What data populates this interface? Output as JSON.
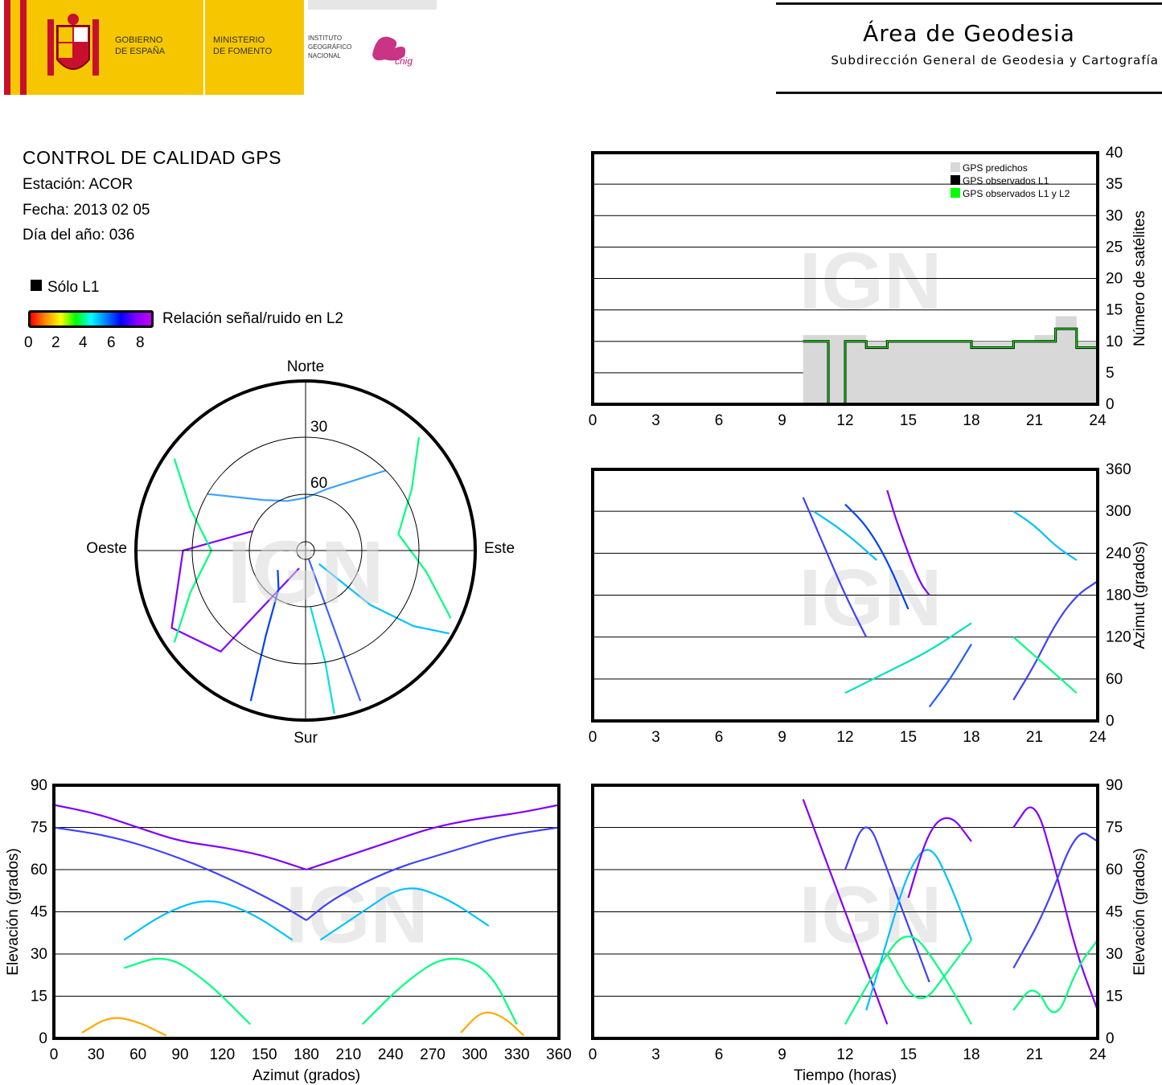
{
  "header": {
    "gov_line1": "GOBIERNO",
    "gov_line2": "DE ESPAÑA",
    "min_line1": "MINISTERIO",
    "min_line2": "DE FOMENTO",
    "ign_line1": "INSTITUTO",
    "ign_line2": "GEOGRÁFICO",
    "ign_line3": "NACIONAL",
    "cnig_logo_text": "cnig",
    "area_title": "Área de Geodesia",
    "area_subtitle": "Subdirección General de Geodesia y Cartografía"
  },
  "info": {
    "title": "CONTROL DE CALIDAD GPS",
    "station": "Estación: ACOR",
    "date": "Fecha: 2013 02 05",
    "doy": "Día del año: 036"
  },
  "legend": {
    "l1_only": "Sólo L1",
    "snr_label": "Relación señal/ruido en L2",
    "snr_ticks": [
      "0",
      "2",
      "4",
      "6",
      "8"
    ],
    "colormap": [
      "#ff0000",
      "#ff8c00",
      "#ffff00",
      "#00ff00",
      "#00ffff",
      "#0080ff",
      "#0000ff",
      "#8000ff",
      "#c000ff"
    ]
  },
  "watermark": "IGN",
  "chart_data": [
    {
      "id": "polar",
      "type": "scatter",
      "title": "",
      "labels": {
        "north": "Norte",
        "south": "Sur",
        "east": "Este",
        "west": "Oeste"
      },
      "rings": [
        "30",
        "60"
      ],
      "tracks": [
        {
          "name": "s1",
          "color": "#8000ff",
          "points": [
            [
              200,
              80
            ],
            [
              220,
              20
            ],
            [
              240,
              8
            ],
            [
              270,
              25
            ],
            [
              290,
              60
            ]
          ]
        },
        {
          "name": "s2",
          "color": "#4060ff",
          "points": [
            [
              160,
              85
            ],
            [
              160,
              50
            ],
            [
              160,
              20
            ],
            [
              160,
              5
            ]
          ]
        },
        {
          "name": "s3",
          "color": "#00c0ff",
          "points": [
            [
              135,
              80
            ],
            [
              130,
              45
            ],
            [
              125,
              20
            ],
            [
              120,
              2
            ]
          ]
        },
        {
          "name": "s4",
          "color": "#00ff80",
          "points": [
            [
              45,
              5
            ],
            [
              60,
              25
            ],
            [
              80,
              40
            ],
            [
              100,
              25
            ],
            [
              115,
              5
            ]
          ]
        },
        {
          "name": "s5",
          "color": "#00ff80",
          "points": [
            [
              235,
              5
            ],
            [
              250,
              25
            ],
            [
              270,
              40
            ],
            [
              290,
              25
            ],
            [
              305,
              5
            ]
          ]
        },
        {
          "name": "s6",
          "color": "#40a0ff",
          "points": [
            [
              300,
              30
            ],
            [
              320,
              55
            ],
            [
              340,
              62
            ],
            [
              0,
              62
            ],
            [
              20,
              55
            ],
            [
              45,
              30
            ]
          ]
        },
        {
          "name": "s7",
          "color": "#0040ff",
          "points": [
            [
              200,
              5
            ],
            [
              205,
              40
            ],
            [
              215,
              65
            ],
            [
              235,
              72
            ]
          ]
        },
        {
          "name": "s8",
          "color": "#00e0e0",
          "points": [
            [
              170,
              2
            ],
            [
              170,
              30
            ],
            [
              175,
              60
            ]
          ]
        }
      ]
    },
    {
      "id": "nsat",
      "type": "area",
      "xlabel": "",
      "ylabel": "Número de satélites",
      "x_ticks": [
        "0",
        "3",
        "6",
        "9",
        "12",
        "15",
        "18",
        "21",
        "24"
      ],
      "y_ticks": [
        "0",
        "5",
        "10",
        "15",
        "20",
        "25",
        "30",
        "35",
        "40"
      ],
      "xlim": [
        0,
        24
      ],
      "ylim": [
        0,
        40
      ],
      "legend": [
        "GPS predichos",
        "GPS observados L1",
        "GPS observados L1 y L2"
      ],
      "legend_colors": [
        "#d8d8d8",
        "#000000",
        "#00ff00"
      ],
      "series": [
        {
          "name": "GPS predichos",
          "x": [
            10,
            11,
            12,
            13,
            14,
            15,
            16,
            17,
            18,
            19,
            20,
            21,
            22,
            23,
            24
          ],
          "y": [
            11,
            11,
            11,
            10,
            10,
            10,
            10,
            10,
            10,
            10,
            10,
            11,
            14,
            10,
            8
          ]
        },
        {
          "name": "GPS observados L1",
          "x": [
            10,
            11,
            11.2,
            12,
            13,
            14,
            15,
            16,
            17,
            18,
            20,
            21,
            22,
            23,
            24
          ],
          "y": [
            10,
            10,
            0,
            10,
            9,
            10,
            10,
            10,
            10,
            9,
            10,
            10,
            12,
            9,
            7
          ]
        },
        {
          "name": "GPS observados L1 y L2",
          "x": [
            10,
            11,
            11.2,
            12,
            13,
            14,
            15,
            16,
            17,
            18,
            20,
            21,
            22,
            23,
            24
          ],
          "y": [
            10,
            10,
            0,
            10,
            9,
            10,
            10,
            10,
            10,
            9,
            10,
            10,
            12,
            9,
            7
          ]
        }
      ]
    },
    {
      "id": "azimuth",
      "type": "line",
      "xlabel": "",
      "ylabel": "Azimut (grados)",
      "x_ticks": [
        "0",
        "3",
        "6",
        "9",
        "12",
        "15",
        "18",
        "21",
        "24"
      ],
      "y_ticks": [
        "0",
        "60",
        "120",
        "180",
        "240",
        "300",
        "360"
      ],
      "xlim": [
        0,
        24
      ],
      "ylim": [
        0,
        360
      ],
      "series": [
        {
          "name": "a1",
          "color": "#4040ff",
          "x": [
            10,
            11,
            12,
            13
          ],
          "y": [
            320,
            250,
            180,
            120
          ]
        },
        {
          "name": "a2",
          "color": "#00c0ff",
          "x": [
            10.5,
            12,
            13.5
          ],
          "y": [
            300,
            270,
            230
          ]
        },
        {
          "name": "a3",
          "color": "#0040ff",
          "x": [
            12,
            13,
            14,
            15
          ],
          "y": [
            310,
            280,
            230,
            160
          ]
        },
        {
          "name": "a4",
          "color": "#8000ff",
          "x": [
            14,
            14.5,
            15.5,
            16
          ],
          "y": [
            330,
            280,
            200,
            180
          ]
        },
        {
          "name": "a5",
          "color": "#00e0c0",
          "x": [
            12,
            14,
            16,
            18
          ],
          "y": [
            40,
            70,
            100,
            140
          ]
        },
        {
          "name": "a6",
          "color": "#2060ff",
          "x": [
            16,
            17,
            18
          ],
          "y": [
            20,
            60,
            110
          ]
        },
        {
          "name": "a7",
          "color": "#00c0ff",
          "x": [
            20,
            21,
            22,
            23
          ],
          "y": [
            300,
            280,
            250,
            230
          ]
        },
        {
          "name": "a8",
          "color": "#4040ff",
          "x": [
            20,
            21,
            22,
            23,
            24
          ],
          "y": [
            30,
            80,
            140,
            180,
            200
          ]
        },
        {
          "name": "a9",
          "color": "#00ff80",
          "x": [
            20,
            21.5,
            23
          ],
          "y": [
            120,
            80,
            40
          ]
        }
      ]
    },
    {
      "id": "elev_az",
      "type": "scatter",
      "xlabel": "Azimut (grados)",
      "ylabel": "Elevación (grados)",
      "x_ticks": [
        "0",
        "30",
        "60",
        "90",
        "120",
        "150",
        "180",
        "210",
        "240",
        "270",
        "300",
        "330",
        "360"
      ],
      "y_ticks": [
        "0",
        "15",
        "30",
        "45",
        "60",
        "75",
        "90"
      ],
      "xlim": [
        0,
        360
      ],
      "ylim": [
        0,
        90
      ],
      "series": [
        {
          "name": "e1",
          "color": "#8000ff",
          "x": [
            0,
            30,
            60,
            90,
            120,
            150,
            180
          ],
          "y": [
            83,
            80,
            75,
            70,
            68,
            65,
            60
          ]
        },
        {
          "name": "e2",
          "color": "#8000ff",
          "x": [
            180,
            210,
            240,
            270,
            300,
            330,
            360
          ],
          "y": [
            60,
            65,
            70,
            75,
            78,
            80,
            83
          ]
        },
        {
          "name": "e3",
          "color": "#4040ff",
          "x": [
            0,
            40,
            80,
            120,
            160,
            180
          ],
          "y": [
            75,
            72,
            66,
            58,
            48,
            42
          ]
        },
        {
          "name": "e4",
          "color": "#4040ff",
          "x": [
            180,
            200,
            240,
            280,
            320,
            360
          ],
          "y": [
            42,
            50,
            60,
            66,
            72,
            75
          ]
        },
        {
          "name": "e5",
          "color": "#00c0ff",
          "x": [
            50,
            80,
            110,
            140,
            170
          ],
          "y": [
            35,
            45,
            50,
            45,
            35
          ]
        },
        {
          "name": "e6",
          "color": "#00c0ff",
          "x": [
            190,
            220,
            250,
            280,
            310
          ],
          "y": [
            35,
            45,
            55,
            50,
            40
          ]
        },
        {
          "name": "e7",
          "color": "#00ff80",
          "x": [
            50,
            80,
            110,
            140
          ],
          "y": [
            25,
            30,
            20,
            5
          ]
        },
        {
          "name": "e8",
          "color": "#00ff80",
          "x": [
            220,
            250,
            280,
            310,
            330
          ],
          "y": [
            5,
            20,
            30,
            25,
            5
          ]
        },
        {
          "name": "e9",
          "color": "#ffaa00",
          "x": [
            20,
            40,
            60,
            80
          ],
          "y": [
            2,
            8,
            6,
            1
          ]
        },
        {
          "name": "e10",
          "color": "#ffaa00",
          "x": [
            290,
            305,
            320,
            335
          ],
          "y": [
            2,
            10,
            8,
            1
          ]
        }
      ]
    },
    {
      "id": "elev_time",
      "type": "line",
      "xlabel": "Tiempo (horas)",
      "ylabel": "Elevación (grados)",
      "x_ticks": [
        "0",
        "3",
        "6",
        "9",
        "12",
        "15",
        "18",
        "21",
        "24"
      ],
      "y_ticks": [
        "0",
        "15",
        "30",
        "45",
        "60",
        "75",
        "90"
      ],
      "xlim": [
        0,
        24
      ],
      "ylim": [
        0,
        90
      ],
      "series": [
        {
          "name": "t1",
          "color": "#8000ff",
          "x": [
            10,
            11,
            12,
            13,
            14
          ],
          "y": [
            85,
            65,
            45,
            25,
            5
          ]
        },
        {
          "name": "t2",
          "color": "#4040ff",
          "x": [
            12,
            13,
            14,
            15,
            16
          ],
          "y": [
            60,
            80,
            60,
            40,
            20
          ]
        },
        {
          "name": "t3",
          "color": "#00c0ff",
          "x": [
            13,
            14,
            15,
            16,
            17,
            18
          ],
          "y": [
            10,
            35,
            60,
            70,
            55,
            35
          ]
        },
        {
          "name": "t4",
          "color": "#00ff80",
          "x": [
            12,
            13.5,
            15,
            16.5,
            18
          ],
          "y": [
            5,
            25,
            40,
            25,
            5
          ]
        },
        {
          "name": "t5",
          "color": "#8000ff",
          "x": [
            15,
            16,
            17,
            18
          ],
          "y": [
            50,
            75,
            80,
            70
          ]
        },
        {
          "name": "t6",
          "color": "#00ff80",
          "x": [
            14,
            15.5,
            17,
            18
          ],
          "y": [
            30,
            10,
            25,
            35
          ]
        },
        {
          "name": "t7",
          "color": "#8000ff",
          "x": [
            20,
            21,
            22,
            23,
            24
          ],
          "y": [
            75,
            86,
            60,
            30,
            10
          ]
        },
        {
          "name": "t8",
          "color": "#4040ff",
          "x": [
            20,
            21.5,
            23,
            24
          ],
          "y": [
            25,
            45,
            75,
            70
          ]
        },
        {
          "name": "t9",
          "color": "#00ff80",
          "x": [
            20,
            21,
            22,
            23,
            24
          ],
          "y": [
            10,
            20,
            5,
            25,
            35
          ]
        }
      ]
    }
  ]
}
